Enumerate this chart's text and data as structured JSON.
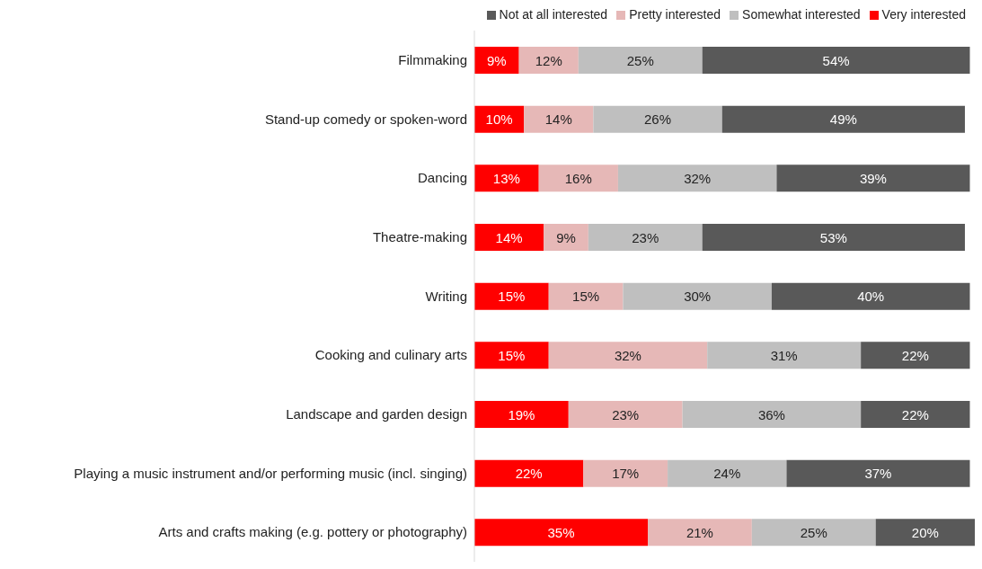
{
  "chart_data": {
    "type": "bar",
    "orientation": "horizontal",
    "stacked": true,
    "legend": "top right",
    "grid": false,
    "tick_labels": "y",
    "categories": [
      "Filmmaking",
      "Stand-up comedy or spoken-word",
      "Dancing",
      "Theatre-making",
      "Writing",
      "Cooking and culinary arts",
      "Landscape and garden design",
      "Playing a music instrument and/or performing music (incl. singing)",
      "Arts and crafts making (e.g. pottery or photography)"
    ],
    "series": [
      {
        "name": "Very interested",
        "color": "#ff0000",
        "values": [
          9,
          10,
          13,
          14,
          15,
          15,
          19,
          22,
          35
        ],
        "value_labels": [
          "9%",
          "10%",
          "13%",
          "14%",
          "15%",
          "15%",
          "19%",
          "22%",
          "35%"
        ]
      },
      {
        "name": "Pretty interested",
        "color": "#e6b8b7",
        "values": [
          12,
          14,
          16,
          9,
          15,
          32,
          23,
          17,
          21
        ],
        "value_labels": [
          "12%",
          "14%",
          "16%",
          "9%",
          "15%",
          "32%",
          "23%",
          "17%",
          "21%"
        ]
      },
      {
        "name": "Somewhat interested",
        "color": "#bfbfbf",
        "values": [
          25,
          26,
          32,
          23,
          30,
          31,
          36,
          24,
          25
        ],
        "value_labels": [
          "25%",
          "26%",
          "32%",
          "23%",
          "30%",
          "31%",
          "36%",
          "24%",
          "25%"
        ]
      },
      {
        "name": "Not at all interested",
        "color": "#595959",
        "values": [
          54,
          49,
          39,
          53,
          40,
          22,
          22,
          37,
          20
        ],
        "value_labels": [
          "54%",
          "49%",
          "39%",
          "53%",
          "40%",
          "22%",
          "22%",
          "37%",
          "20%"
        ]
      }
    ]
  }
}
